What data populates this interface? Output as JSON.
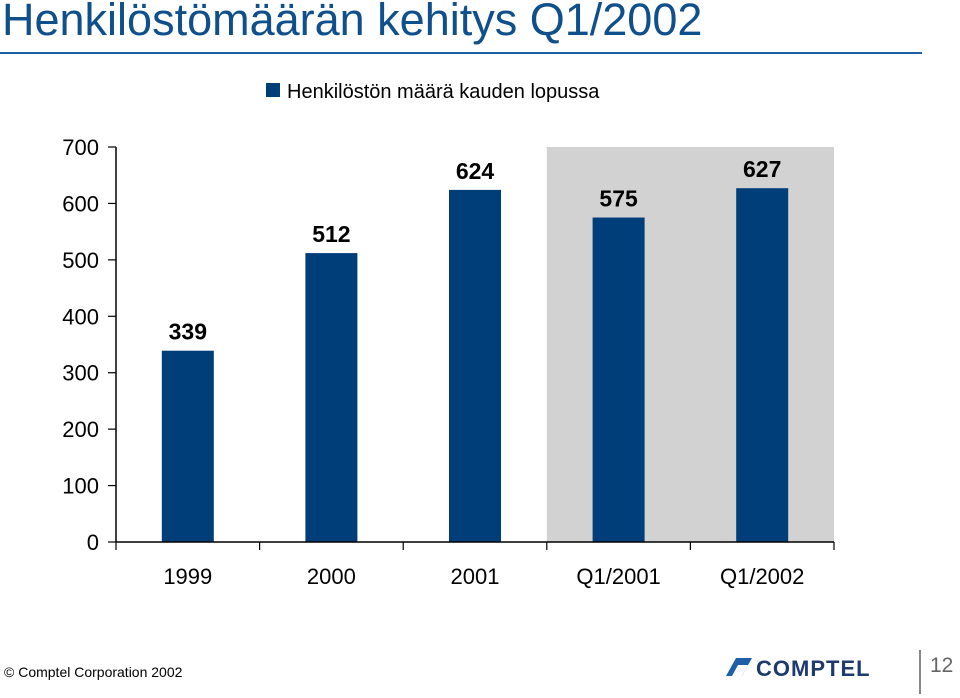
{
  "slide": {
    "title": "Henkilöstömäärän kehitys Q1/2002"
  },
  "chart_data": {
    "type": "bar",
    "title": "",
    "categories": [
      "1999",
      "2000",
      "2001",
      "Q1/2001",
      "Q1/2002"
    ],
    "series": [
      {
        "name": "Henkilöstön määrä kauden lopussa",
        "values": [
          339,
          512,
          624,
          575,
          627
        ]
      }
    ],
    "data_labels": [
      "339",
      "512",
      "624",
      "575",
      "627"
    ],
    "xlabel": "",
    "ylabel": "",
    "ylim": [
      0,
      700
    ],
    "yticks": [
      0,
      100,
      200,
      300,
      400,
      500,
      600,
      700
    ],
    "grid": false,
    "legend": "top",
    "highlighted_categories": [
      "Q1/2001",
      "Q1/2002"
    ],
    "colors": {
      "bar": "#003e7a",
      "highlight_bg": "#d2d2d2",
      "axis": "#000000"
    }
  },
  "footer": {
    "copyright": "© Comptel Corporation 2002",
    "logo_text": "COMPTEL",
    "page_number": "12"
  }
}
